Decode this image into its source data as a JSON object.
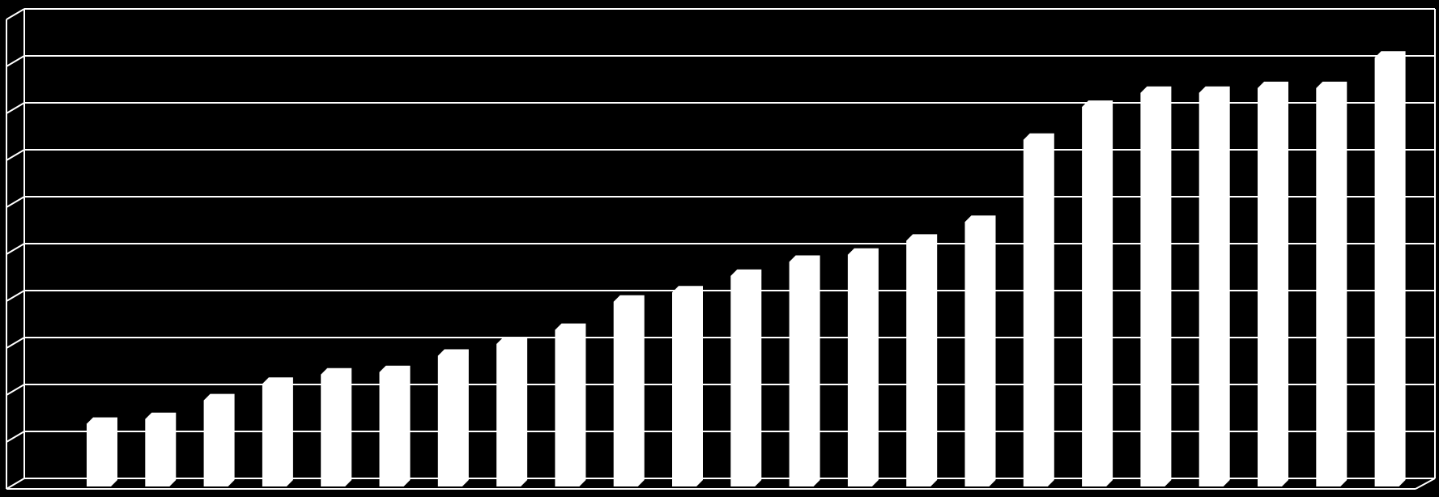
{
  "chart_data": {
    "type": "bar",
    "title": "",
    "xlabel": "",
    "ylabel": "",
    "ylim": [
      0,
      10
    ],
    "grid": true,
    "legend": "none",
    "colors": {
      "background": "#000000",
      "bar": "#ffffff",
      "grid": "#ffffff"
    },
    "values": [
      1.3,
      1.4,
      1.8,
      2.15,
      2.35,
      2.4,
      2.75,
      3.0,
      3.3,
      3.9,
      4.1,
      4.45,
      4.75,
      4.9,
      5.2,
      5.6,
      7.35,
      8.05,
      8.35,
      8.35,
      8.45,
      8.45,
      9.1
    ]
  }
}
